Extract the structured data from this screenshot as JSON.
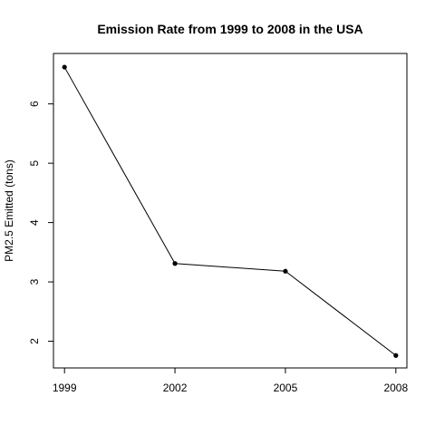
{
  "chart_data": {
    "type": "line",
    "title": "Emission Rate from 1999 to 2008 in the USA",
    "xlabel": "",
    "ylabel": "PM2.5 Emitted (tons)",
    "x": [
      1999,
      2002,
      2005,
      2008
    ],
    "x_ticks": [
      "1999",
      "2002",
      "2005",
      "2008"
    ],
    "y_ticks": [
      "2",
      "3",
      "4",
      "5",
      "6"
    ],
    "series": [
      {
        "values": [
          6.62,
          3.31,
          3.18,
          1.76
        ],
        "color": "#000000",
        "marker": "filled-circle"
      }
    ],
    "xlim": [
      1998.7,
      2008.3
    ],
    "ylim": [
      1.55,
      6.85
    ],
    "grid": false,
    "legend": "none"
  }
}
